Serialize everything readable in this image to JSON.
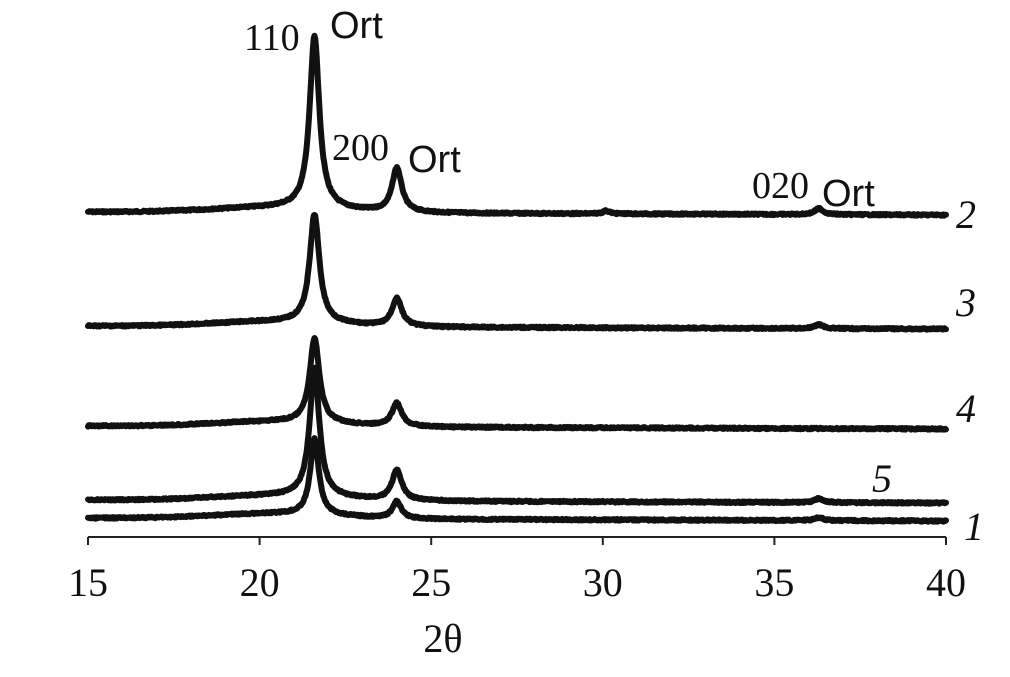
{
  "chart_data": {
    "type": "line",
    "xlabel": "2θ",
    "ylabel": "",
    "xlim": [
      15,
      40
    ],
    "x_ticks": [
      "15",
      "20",
      "25",
      "30",
      "35",
      "40"
    ],
    "grid": false,
    "peaks": [
      {
        "two_theta": 21.6,
        "index": "110",
        "phase": "Ort"
      },
      {
        "two_theta": 24.0,
        "index": "200",
        "phase": "Ort"
      },
      {
        "two_theta": 36.3,
        "index": "020",
        "phase": "Ort"
      }
    ],
    "series": [
      {
        "name": "2",
        "baseline": 212,
        "peaks": [
          {
            "x": 21.6,
            "h": 172,
            "w": 0.17
          },
          {
            "x": 24.0,
            "h": 44,
            "w": 0.17
          },
          {
            "x": 30.1,
            "h": 3,
            "w": 0.12
          },
          {
            "x": 36.3,
            "h": 6,
            "w": 0.15
          }
        ]
      },
      {
        "name": "3",
        "baseline": 326,
        "peaks": [
          {
            "x": 21.6,
            "h": 108,
            "w": 0.17
          },
          {
            "x": 24.0,
            "h": 28,
            "w": 0.17
          },
          {
            "x": 36.3,
            "h": 4,
            "w": 0.15
          }
        ]
      },
      {
        "name": "4",
        "baseline": 426,
        "peaks": [
          {
            "x": 21.6,
            "h": 84,
            "w": 0.17
          },
          {
            "x": 24.0,
            "h": 23,
            "w": 0.17
          }
        ]
      },
      {
        "name": "5",
        "baseline": 500,
        "peaks": [
          {
            "x": 21.6,
            "h": 128,
            "w": 0.17
          },
          {
            "x": 24.0,
            "h": 30,
            "w": 0.17
          },
          {
            "x": 36.3,
            "h": 4,
            "w": 0.15
          }
        ]
      },
      {
        "name": "1",
        "baseline": 518,
        "peaks": [
          {
            "x": 21.6,
            "h": 76,
            "w": 0.15
          },
          {
            "x": 24.0,
            "h": 17,
            "w": 0.15
          },
          {
            "x": 36.3,
            "h": 3,
            "w": 0.15
          }
        ]
      }
    ]
  }
}
